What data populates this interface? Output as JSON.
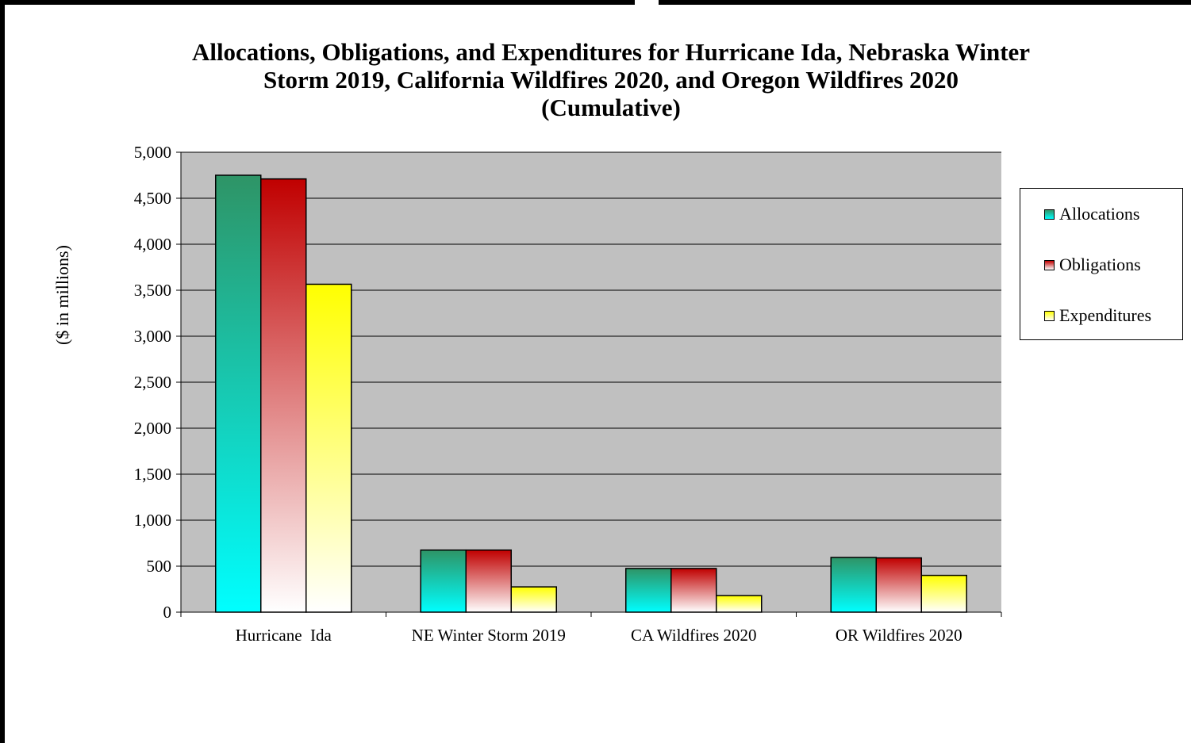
{
  "chart_data": {
    "type": "bar",
    "title_lines": [
      "Allocations, Obligations, and Expenditures for Hurricane Ida, Nebraska Winter",
      "Storm 2019, California Wildfires 2020, and Oregon Wildfires 2020",
      "(Cumulative)"
    ],
    "ylabel": "($ in millions)",
    "xlabel": "",
    "ylim": [
      0,
      5000
    ],
    "y_ticks": [
      0,
      500,
      1000,
      1500,
      2000,
      2500,
      3000,
      3500,
      4000,
      4500,
      5000
    ],
    "y_tick_labels": [
      "0",
      "500",
      "1,000",
      "1,500",
      "2,000",
      "2,500",
      "3,000",
      "3,500",
      "4,000",
      "4,500",
      "5,000"
    ],
    "categories": [
      "Hurricane  Ida",
      "NE Winter Storm 2019",
      "CA Wildfires 2020",
      "OR Wildfires 2020"
    ],
    "series": [
      {
        "name": "Allocations",
        "values": [
          4750,
          675,
          475,
          595
        ],
        "color_top": "#2e9466",
        "color_bottom": "#00ffff"
      },
      {
        "name": "Obligations",
        "values": [
          4710,
          675,
          475,
          590
        ],
        "color_top": "#c00000",
        "color_bottom": "#ffffff"
      },
      {
        "name": "Expenditures",
        "values": [
          3565,
          275,
          180,
          400
        ],
        "color_top": "#ffff00",
        "color_bottom": "#ffffff"
      }
    ],
    "legend_position": "right",
    "grid": true,
    "plot_background": "#c0c0c0"
  }
}
